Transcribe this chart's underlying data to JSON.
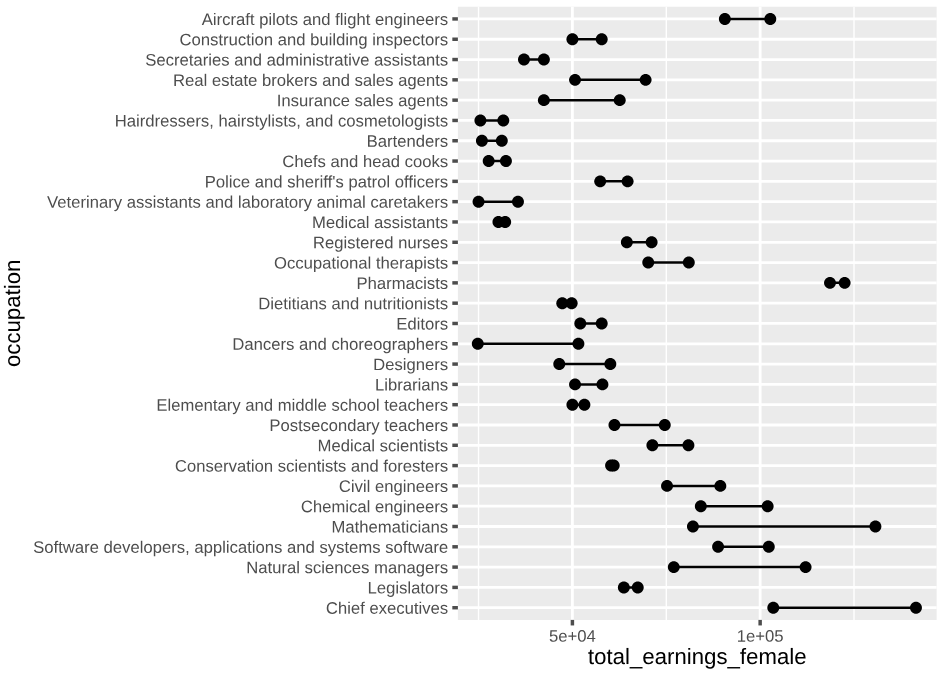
{
  "chart_data": {
    "type": "scatter",
    "orientation": "horizontal",
    "xlabel": "total_earnings_female",
    "ylabel": "occupation",
    "categories": [
      "Aircraft pilots and flight engineers",
      "Construction and building inspectors",
      "Secretaries and administrative assistants",
      "Real estate brokers and sales agents",
      "Insurance sales agents",
      "Hairdressers, hairstylists, and cosmetologists",
      "Bartenders",
      "Chefs and head cooks",
      "Police and sheriff's patrol officers",
      "Veterinary assistants and laboratory animal caretakers",
      "Medical assistants",
      "Registered nurses",
      "Occupational therapists",
      "Pharmacists",
      "Dietitians and nutritionists",
      "Editors",
      "Dancers and choreographers",
      "Designers",
      "Librarians",
      "Elementary and middle school teachers",
      "Postsecondary teachers",
      "Medical scientists",
      "Conservation scientists and foresters",
      "Civil engineers",
      "Chemical engineers",
      "Mathematicians",
      "Software developers, applications and systems software",
      "Natural sciences managers",
      "Legislators",
      "Chief executives"
    ],
    "series": [
      {
        "color": "#000000",
        "values": [
          90600,
          50000,
          37100,
          50700,
          42400,
          25500,
          25900,
          27700,
          57400,
          25000,
          30300,
          64500,
          70200,
          118600,
          47300,
          52100,
          24800,
          46500,
          50700,
          50000,
          61200,
          71300,
          60300,
          75200,
          84200,
          82100,
          88800,
          77000,
          63700,
          103500
        ]
      },
      {
        "color": "#000000",
        "values": [
          102700,
          57800,
          42400,
          69500,
          62600,
          31600,
          31200,
          32300,
          64700,
          35500,
          32100,
          71100,
          81000,
          122500,
          49800,
          57800,
          51600,
          60100,
          58000,
          53200,
          74600,
          80900,
          61000,
          89400,
          102000,
          130700,
          102300,
          112100,
          67400,
          141500
        ]
      }
    ],
    "marker": "circle",
    "xlim": [
      19500,
      147000
    ],
    "xticks": [
      {
        "value": 25000,
        "label": null
      },
      {
        "value": 50000,
        "label": "5e+04"
      },
      {
        "value": 75000,
        "label": null
      },
      {
        "value": 100000,
        "label": "1e+05"
      },
      {
        "value": 125000,
        "label": null
      }
    ],
    "grid": true
  }
}
